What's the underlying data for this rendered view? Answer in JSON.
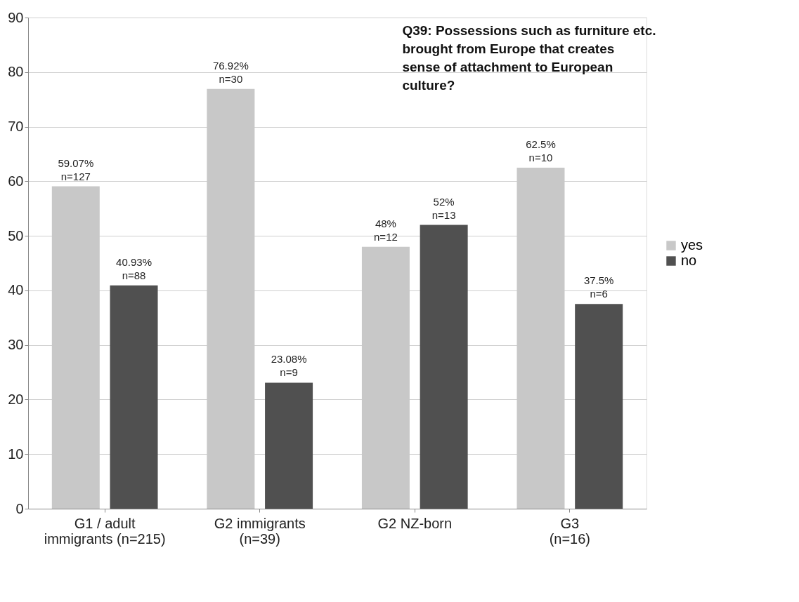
{
  "chart_data": {
    "type": "bar",
    "title": "Q39: Possessions such as furniture etc.\nbrought from Europe that creates\nsense of attachment to European\nculture?",
    "categories": [
      "G1 / adult\nimmigrants (n=215)",
      "G2 immigrants\n(n=39)",
      "G2 NZ-born",
      "G3\n(n=16)"
    ],
    "series": [
      {
        "name": "yes",
        "color": "#c8c8c8",
        "values": [
          59.07,
          76.92,
          48,
          62.5
        ],
        "value_labels": [
          "59.07%\nn=127",
          "76.92%\nn=30",
          "48%\nn=12",
          "62.5%\nn=10"
        ]
      },
      {
        "name": "no",
        "color": "#505050",
        "values": [
          40.93,
          23.08,
          52,
          37.5
        ],
        "value_labels": [
          "40.93%\nn=88",
          "23.08%\nn=9",
          "52%\nn=13",
          "37.5%\nn=6"
        ]
      }
    ],
    "ylim": [
      0,
      90
    ],
    "yticks": [
      0,
      10,
      20,
      30,
      40,
      50,
      60,
      70,
      80,
      90
    ],
    "grid": "y",
    "legend": "right"
  }
}
